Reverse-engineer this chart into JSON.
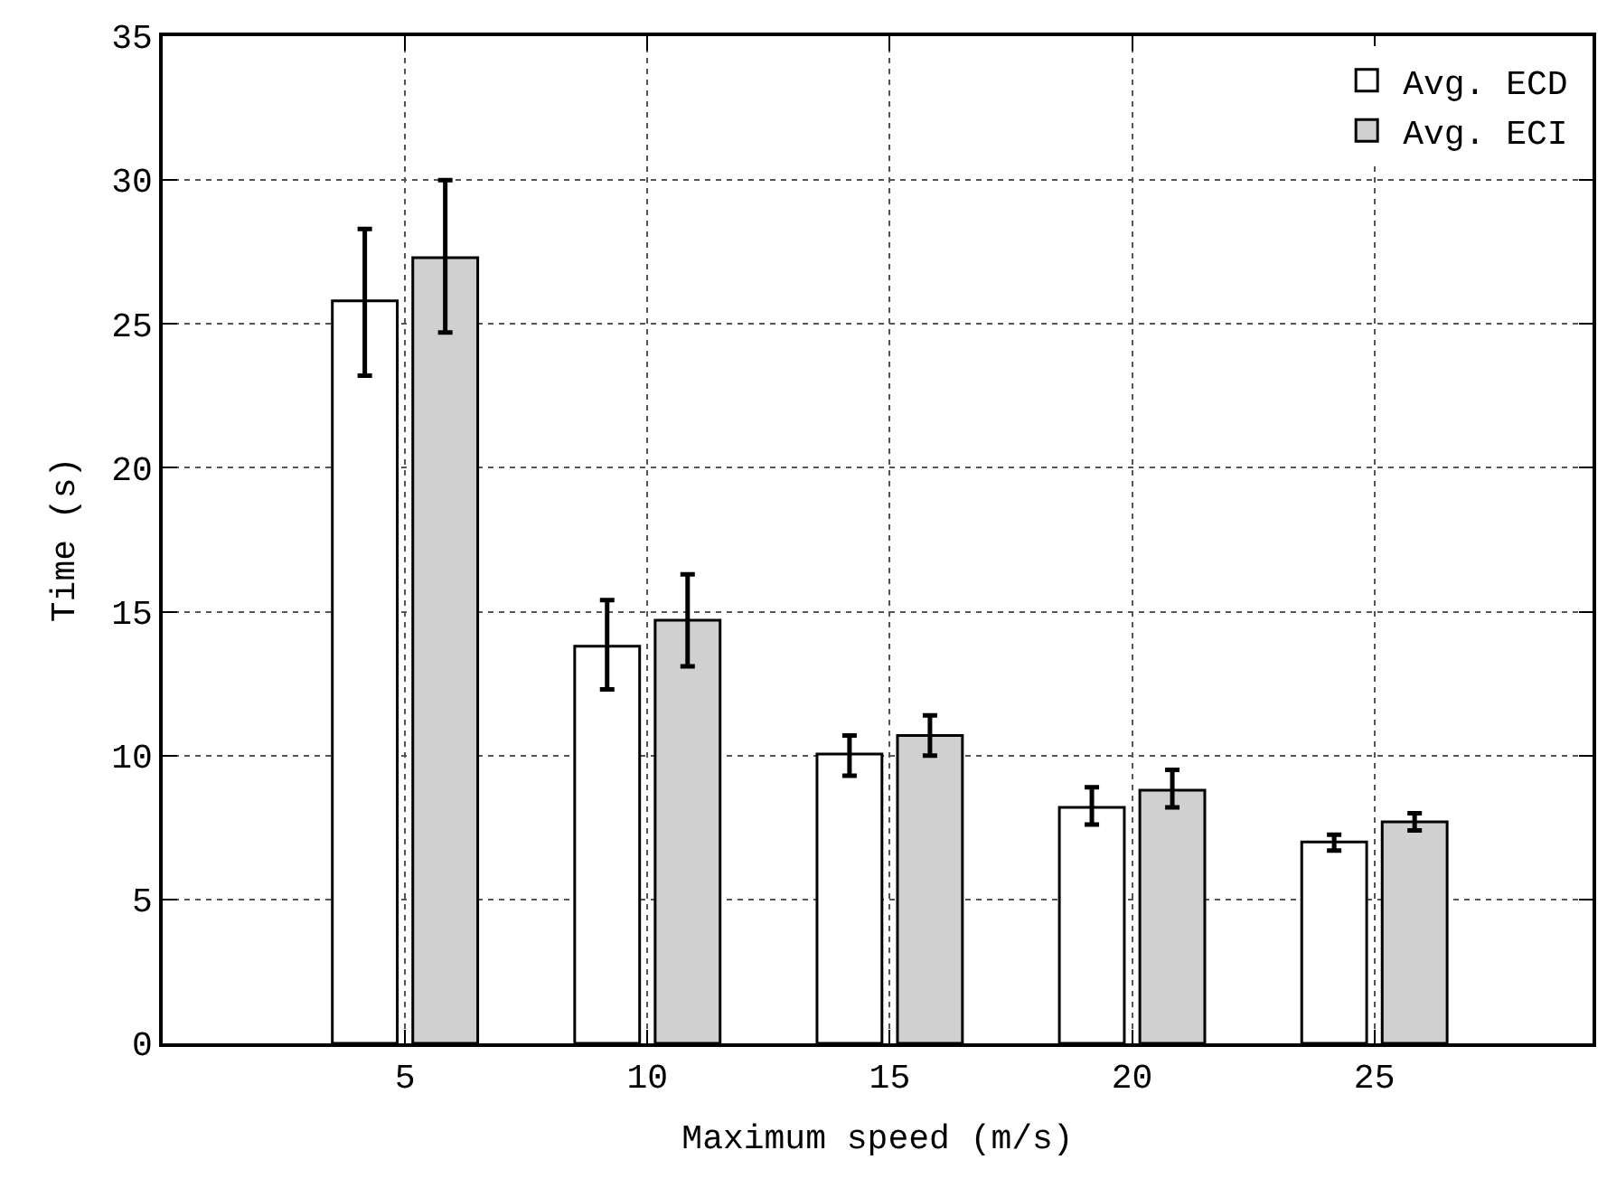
{
  "chart_data": {
    "type": "bar",
    "xlabel": "Maximum speed (m/s)",
    "ylabel": "Time (s)",
    "x": [
      5,
      10,
      15,
      20,
      25
    ],
    "series": [
      {
        "name": "Avg. ECD",
        "color": "#ffffff",
        "values": [
          25.8,
          13.8,
          10.05,
          8.2,
          7.0
        ],
        "errors": [
          [
            23.2,
            28.3
          ],
          [
            12.3,
            15.4
          ],
          [
            9.3,
            10.7
          ],
          [
            7.6,
            8.9
          ],
          [
            6.7,
            7.25
          ]
        ]
      },
      {
        "name": "Avg. ECI",
        "color": "#d0d0d0",
        "values": [
          27.3,
          14.7,
          10.7,
          8.8,
          7.7
        ],
        "errors": [
          [
            24.7,
            30.0
          ],
          [
            13.1,
            16.3
          ],
          [
            10.0,
            11.4
          ],
          [
            8.2,
            9.5
          ],
          [
            7.4,
            8.0
          ]
        ]
      }
    ],
    "xlim": [
      0,
      29.5
    ],
    "xticks": [
      5,
      10,
      15,
      20,
      25
    ],
    "ylim": [
      0,
      35
    ],
    "yticks": [
      0,
      5,
      10,
      15,
      20,
      25,
      30,
      35
    ],
    "grid": true,
    "legend": "top right"
  }
}
